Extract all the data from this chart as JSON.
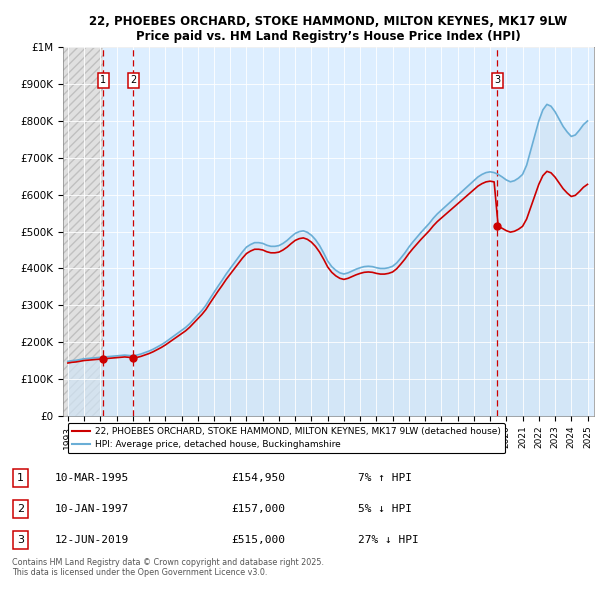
{
  "title_line1": "22, PHOEBES ORCHARD, STOKE HAMMOND, MILTON KEYNES, MK17 9LW",
  "title_line2": "Price paid vs. HM Land Registry’s House Price Index (HPI)",
  "ylim": [
    0,
    1000000
  ],
  "ytick_labels": [
    "£0",
    "£100K",
    "£200K",
    "£300K",
    "£400K",
    "£500K",
    "£600K",
    "£700K",
    "£800K",
    "£900K",
    "£1M"
  ],
  "ytick_values": [
    0,
    100000,
    200000,
    300000,
    400000,
    500000,
    600000,
    700000,
    800000,
    900000,
    1000000
  ],
  "sale_years": [
    1995.19,
    1997.03,
    2019.45
  ],
  "sale_prices": [
    154950,
    157000,
    515000
  ],
  "sale_labels": [
    "1",
    "2",
    "3"
  ],
  "vline_color": "#cc0000",
  "hpi_line_color": "#6aaed6",
  "hpi_fill_color": "#d0e4f5",
  "price_color": "#cc0000",
  "hatch_color": "#c8c8c8",
  "bg_blue_color": "#ddeeff",
  "legend_label_price": "22, PHOEBES ORCHARD, STOKE HAMMOND, MILTON KEYNES, MK17 9LW (detached house)",
  "legend_label_hpi": "HPI: Average price, detached house, Buckinghamshire",
  "table_rows": [
    {
      "label": "1",
      "date": "10-MAR-1995",
      "price": "£154,950",
      "info": "7% ↑ HPI"
    },
    {
      "label": "2",
      "date": "10-JAN-1997",
      "price": "£157,000",
      "info": "5% ↓ HPI"
    },
    {
      "label": "3",
      "date": "12-JUN-2019",
      "price": "£515,000",
      "info": "27% ↓ HPI"
    }
  ],
  "footnote": "Contains HM Land Registry data © Crown copyright and database right 2025.\nThis data is licensed under the Open Government Licence v3.0.",
  "hpi_x": [
    1993.0,
    1993.25,
    1993.5,
    1993.75,
    1994.0,
    1994.25,
    1994.5,
    1994.75,
    1995.0,
    1995.25,
    1995.5,
    1995.75,
    1996.0,
    1996.25,
    1996.5,
    1996.75,
    1997.0,
    1997.25,
    1997.5,
    1997.75,
    1998.0,
    1998.25,
    1998.5,
    1998.75,
    1999.0,
    1999.25,
    1999.5,
    1999.75,
    2000.0,
    2000.25,
    2000.5,
    2000.75,
    2001.0,
    2001.25,
    2001.5,
    2001.75,
    2002.0,
    2002.25,
    2002.5,
    2002.75,
    2003.0,
    2003.25,
    2003.5,
    2003.75,
    2004.0,
    2004.25,
    2004.5,
    2004.75,
    2005.0,
    2005.25,
    2005.5,
    2005.75,
    2006.0,
    2006.25,
    2006.5,
    2006.75,
    2007.0,
    2007.25,
    2007.5,
    2007.75,
    2008.0,
    2008.25,
    2008.5,
    2008.75,
    2009.0,
    2009.25,
    2009.5,
    2009.75,
    2010.0,
    2010.25,
    2010.5,
    2010.75,
    2011.0,
    2011.25,
    2011.5,
    2011.75,
    2012.0,
    2012.25,
    2012.5,
    2012.75,
    2013.0,
    2013.25,
    2013.5,
    2013.75,
    2014.0,
    2014.25,
    2014.5,
    2014.75,
    2015.0,
    2015.25,
    2015.5,
    2015.75,
    2016.0,
    2016.25,
    2016.5,
    2016.75,
    2017.0,
    2017.25,
    2017.5,
    2017.75,
    2018.0,
    2018.25,
    2018.5,
    2018.75,
    2019.0,
    2019.25,
    2019.5,
    2019.75,
    2020.0,
    2020.25,
    2020.5,
    2020.75,
    2021.0,
    2021.25,
    2021.5,
    2021.75,
    2022.0,
    2022.25,
    2022.5,
    2022.75,
    2023.0,
    2023.25,
    2023.5,
    2023.75,
    2024.0,
    2024.25,
    2024.5,
    2024.75,
    2025.0
  ],
  "hpi_y": [
    148000,
    150000,
    151000,
    153000,
    155000,
    156000,
    157000,
    158000,
    159000,
    160000,
    161000,
    162000,
    163000,
    164000,
    165000,
    164000,
    163000,
    165000,
    168000,
    172000,
    176000,
    181000,
    187000,
    193000,
    200000,
    208000,
    216000,
    224000,
    232000,
    240000,
    250000,
    262000,
    274000,
    286000,
    300000,
    318000,
    335000,
    352000,
    368000,
    385000,
    400000,
    415000,
    430000,
    445000,
    458000,
    465000,
    470000,
    470000,
    468000,
    463000,
    460000,
    460000,
    462000,
    468000,
    476000,
    486000,
    495000,
    500000,
    502000,
    498000,
    490000,
    478000,
    462000,
    442000,
    420000,
    405000,
    395000,
    388000,
    385000,
    388000,
    393000,
    398000,
    402000,
    405000,
    406000,
    405000,
    402000,
    400000,
    400000,
    402000,
    406000,
    415000,
    428000,
    442000,
    458000,
    472000,
    485000,
    498000,
    510000,
    522000,
    536000,
    548000,
    558000,
    568000,
    578000,
    588000,
    598000,
    608000,
    618000,
    628000,
    638000,
    648000,
    655000,
    660000,
    662000,
    660000,
    655000,
    648000,
    640000,
    635000,
    638000,
    645000,
    655000,
    680000,
    720000,
    760000,
    800000,
    830000,
    845000,
    840000,
    825000,
    805000,
    785000,
    770000,
    758000,
    762000,
    775000,
    790000,
    800000
  ]
}
